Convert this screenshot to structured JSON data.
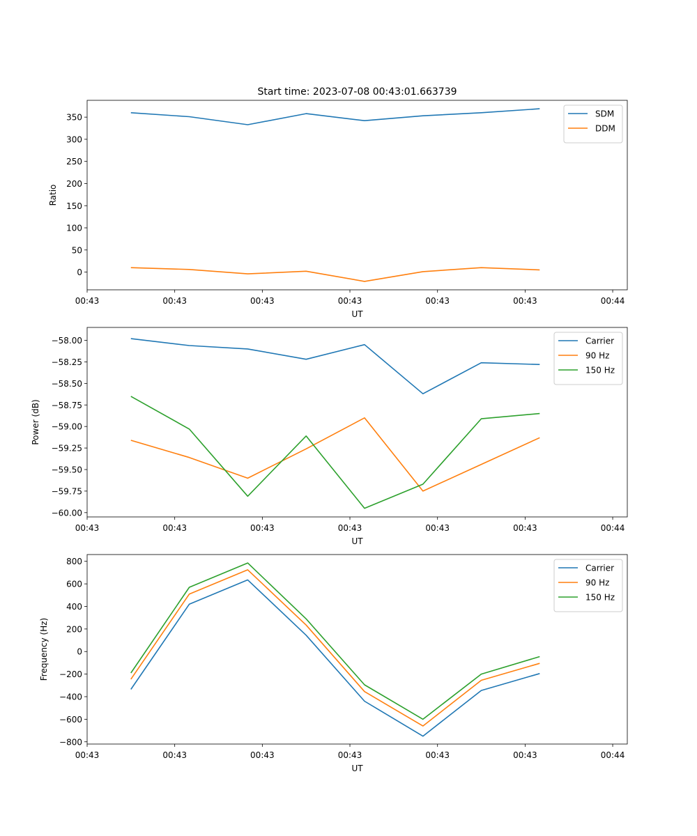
{
  "colors": {
    "c0": "#1f77b4",
    "c1": "#ff7f0e",
    "c2": "#2ca02c"
  },
  "chart_data": [
    {
      "type": "line",
      "title": "Start time: 2023-07-08 00:43:01.663739",
      "xlabel": "UT",
      "ylabel": "Ratio",
      "xlim": [
        0,
        9.25
      ],
      "x": [
        0.75,
        1.75,
        2.75,
        3.75,
        4.75,
        5.75,
        6.75,
        7.75
      ],
      "ylim": [
        -40,
        388
      ],
      "yticks": [
        0,
        50,
        100,
        150,
        200,
        250,
        300,
        350
      ],
      "xticks": [
        0,
        1.5,
        3,
        4.5,
        6,
        7.5,
        9
      ],
      "xtick_labels": [
        "00:43",
        "00:43",
        "00:43",
        "00:43",
        "00:43",
        "00:43",
        "00:44"
      ],
      "legend": "top-right",
      "series": [
        {
          "name": "SDM",
          "color": "#1f77b4",
          "values": [
            360,
            351,
            333,
            358,
            342,
            353,
            360,
            369
          ]
        },
        {
          "name": "DDM",
          "color": "#ff7f0e",
          "values": [
            10,
            6,
            -4,
            2,
            -21,
            1,
            10,
            5
          ]
        }
      ]
    },
    {
      "type": "line",
      "title": "",
      "xlabel": "UT",
      "ylabel": "Power (dB)",
      "xlim": [
        0,
        9.25
      ],
      "x": [
        0.75,
        1.75,
        2.75,
        3.75,
        4.75,
        5.75,
        6.75,
        7.75
      ],
      "ylim": [
        -60.05,
        -57.85
      ],
      "yticks": [
        -60.0,
        -59.75,
        -59.5,
        -59.25,
        -59.0,
        -58.75,
        -58.5,
        -58.25,
        -58.0
      ],
      "ytick_labels": [
        "−60.00",
        "−59.75",
        "−59.50",
        "−59.25",
        "−59.00",
        "−58.75",
        "−58.50",
        "−58.25",
        "−58.00"
      ],
      "xticks": [
        0,
        1.5,
        3,
        4.5,
        6,
        7.5,
        9
      ],
      "xtick_labels": [
        "00:43",
        "00:43",
        "00:43",
        "00:43",
        "00:43",
        "00:43",
        "00:44"
      ],
      "legend": "top-right",
      "series": [
        {
          "name": "Carrier",
          "color": "#1f77b4",
          "values": [
            -57.98,
            -58.06,
            -58.1,
            -58.22,
            -58.05,
            -58.62,
            -58.26,
            -58.28
          ]
        },
        {
          "name": "90 Hz",
          "color": "#ff7f0e",
          "values": [
            -59.16,
            -59.36,
            -59.6,
            -59.26,
            -58.9,
            -59.75,
            -59.44,
            -59.13
          ]
        },
        {
          "name": "150 Hz",
          "color": "#2ca02c",
          "values": [
            -58.65,
            -59.03,
            -59.81,
            -59.11,
            -59.95,
            -59.67,
            -58.91,
            -58.85
          ]
        }
      ]
    },
    {
      "type": "line",
      "title": "",
      "xlabel": "UT",
      "ylabel": "Frequency (Hz)",
      "xlim": [
        0,
        9.25
      ],
      "x": [
        0.75,
        1.75,
        2.75,
        3.75,
        4.75,
        5.75,
        6.75,
        7.75
      ],
      "ylim": [
        -820,
        860
      ],
      "yticks": [
        -800,
        -600,
        -400,
        -200,
        0,
        200,
        400,
        600,
        800
      ],
      "ytick_labels": [
        "−800",
        "−600",
        "−400",
        "−200",
        "0",
        "200",
        "400",
        "600",
        "800"
      ],
      "xticks": [
        0,
        1.5,
        3,
        4.5,
        6,
        7.5,
        9
      ],
      "xtick_labels": [
        "00:43",
        "00:43",
        "00:43",
        "00:43",
        "00:43",
        "00:43",
        "00:44"
      ],
      "legend": "top-right",
      "series": [
        {
          "name": "Carrier",
          "color": "#1f77b4",
          "values": [
            -335,
            420,
            635,
            145,
            -440,
            -750,
            -345,
            -195
          ]
        },
        {
          "name": "90 Hz",
          "color": "#ff7f0e",
          "values": [
            -245,
            510,
            725,
            235,
            -355,
            -660,
            -255,
            -105
          ]
        },
        {
          "name": "150 Hz",
          "color": "#2ca02c",
          "values": [
            -190,
            570,
            785,
            290,
            -295,
            -600,
            -200,
            -45
          ]
        }
      ]
    }
  ]
}
